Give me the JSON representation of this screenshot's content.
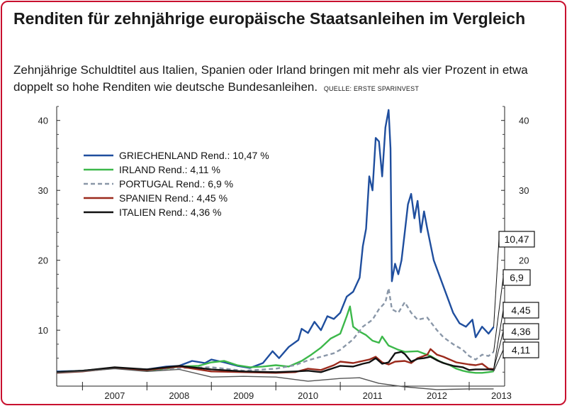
{
  "header": {
    "title": "Renditen für zehnjährige europäische Staatsanleihen im Vergleich",
    "subtitle": "Zehnjährige Schuldtitel aus Italien, Spanien oder Irland bringen mit mehr als vier Prozent in etwa doppelt so hohe Renditen wie deutsche Bundesanleihen.",
    "source": "QUELLE: ERSTE SPARINVEST"
  },
  "colors": {
    "frame": "#c8102e",
    "griechenland": "#1f4e9e",
    "irland": "#3cb84a",
    "portugal": "#8a97a8",
    "spanien": "#9b2a1c",
    "italien": "#111111",
    "bund": "#555555"
  },
  "chart_data": {
    "type": "line",
    "title": "",
    "xlabel": "",
    "ylabel": "",
    "xlim": [
      2006.6,
      2013.55
    ],
    "ylim": [
      2,
      42
    ],
    "x_ticks": [
      "2007",
      "2008",
      "2009",
      "2010",
      "2011",
      "2012",
      "2013"
    ],
    "y_ticks_left": [
      "10",
      "20",
      "30",
      "40"
    ],
    "y_ticks_right": [
      "20",
      "30",
      "40"
    ],
    "grid": false,
    "legend_position": "top-left",
    "series": [
      {
        "name": "GRIECHENLAND Rend.: 10,47 %",
        "color": "#1f4e9e",
        "style": "solid",
        "end_label": "10,47",
        "points": [
          [
            2006.6,
            4.1
          ],
          [
            2007.0,
            4.2
          ],
          [
            2007.5,
            4.6
          ],
          [
            2008.0,
            4.4
          ],
          [
            2008.3,
            4.8
          ],
          [
            2008.5,
            4.9
          ],
          [
            2008.7,
            5.6
          ],
          [
            2008.9,
            5.3
          ],
          [
            2009.0,
            5.8
          ],
          [
            2009.2,
            5.4
          ],
          [
            2009.4,
            4.9
          ],
          [
            2009.6,
            4.6
          ],
          [
            2009.8,
            5.3
          ],
          [
            2009.95,
            7.0
          ],
          [
            2010.05,
            6.0
          ],
          [
            2010.2,
            7.6
          ],
          [
            2010.35,
            8.6
          ],
          [
            2010.4,
            10.2
          ],
          [
            2010.5,
            9.6
          ],
          [
            2010.6,
            11.2
          ],
          [
            2010.7,
            10.0
          ],
          [
            2010.8,
            12.0
          ],
          [
            2010.9,
            11.6
          ],
          [
            2011.0,
            12.5
          ],
          [
            2011.1,
            14.8
          ],
          [
            2011.2,
            15.5
          ],
          [
            2011.3,
            17.5
          ],
          [
            2011.35,
            22.0
          ],
          [
            2011.4,
            24.5
          ],
          [
            2011.45,
            32.0
          ],
          [
            2011.5,
            30.0
          ],
          [
            2011.55,
            37.5
          ],
          [
            2011.6,
            37.0
          ],
          [
            2011.65,
            32.0
          ],
          [
            2011.7,
            39.0
          ],
          [
            2011.75,
            41.5
          ],
          [
            2011.78,
            36.0
          ],
          [
            2011.8,
            17.0
          ],
          [
            2011.85,
            19.5
          ],
          [
            2011.9,
            18.0
          ],
          [
            2011.95,
            20.0
          ],
          [
            2012.0,
            24.0
          ],
          [
            2012.05,
            28.0
          ],
          [
            2012.1,
            29.5
          ],
          [
            2012.15,
            26.0
          ],
          [
            2012.2,
            28.5
          ],
          [
            2012.25,
            24.0
          ],
          [
            2012.3,
            27.0
          ],
          [
            2012.35,
            24.5
          ],
          [
            2012.45,
            20.0
          ],
          [
            2012.55,
            17.5
          ],
          [
            2012.65,
            15.0
          ],
          [
            2012.75,
            12.5
          ],
          [
            2012.85,
            11.0
          ],
          [
            2012.95,
            10.5
          ],
          [
            2013.05,
            11.5
          ],
          [
            2013.1,
            9.0
          ],
          [
            2013.2,
            10.5
          ],
          [
            2013.3,
            9.5
          ],
          [
            2013.38,
            10.47
          ]
        ]
      },
      {
        "name": "IRLAND Rend.: 4,11 %",
        "color": "#3cb84a",
        "style": "solid",
        "end_label": "4,11",
        "points": [
          [
            2006.6,
            4.0
          ],
          [
            2007.0,
            4.2
          ],
          [
            2007.5,
            4.6
          ],
          [
            2008.0,
            4.2
          ],
          [
            2008.3,
            4.5
          ],
          [
            2008.5,
            4.8
          ],
          [
            2008.8,
            4.9
          ],
          [
            2009.0,
            5.4
          ],
          [
            2009.2,
            5.6
          ],
          [
            2009.4,
            5.0
          ],
          [
            2009.6,
            4.7
          ],
          [
            2009.8,
            4.8
          ],
          [
            2010.0,
            5.0
          ],
          [
            2010.2,
            4.8
          ],
          [
            2010.4,
            5.6
          ],
          [
            2010.55,
            6.5
          ],
          [
            2010.7,
            7.5
          ],
          [
            2010.85,
            8.8
          ],
          [
            2011.0,
            9.5
          ],
          [
            2011.1,
            12.0
          ],
          [
            2011.15,
            13.4
          ],
          [
            2011.2,
            10.5
          ],
          [
            2011.3,
            9.8
          ],
          [
            2011.4,
            9.3
          ],
          [
            2011.5,
            8.5
          ],
          [
            2011.6,
            8.2
          ],
          [
            2011.65,
            9.1
          ],
          [
            2011.75,
            7.8
          ],
          [
            2011.9,
            7.2
          ],
          [
            2012.0,
            6.9
          ],
          [
            2012.2,
            7.0
          ],
          [
            2012.4,
            6.3
          ],
          [
            2012.55,
            5.5
          ],
          [
            2012.7,
            5.0
          ],
          [
            2012.8,
            4.5
          ],
          [
            2012.9,
            4.2
          ],
          [
            2013.0,
            4.0
          ],
          [
            2013.1,
            3.9
          ],
          [
            2013.2,
            3.9
          ],
          [
            2013.3,
            4.0
          ],
          [
            2013.38,
            4.11
          ]
        ]
      },
      {
        "name": "PORTUGAL Rend.: 6,9 %",
        "color": "#8a97a8",
        "style": "dashed",
        "end_label": "6,9",
        "points": [
          [
            2006.6,
            4.0
          ],
          [
            2007.0,
            4.2
          ],
          [
            2007.5,
            4.6
          ],
          [
            2008.0,
            4.3
          ],
          [
            2008.5,
            4.6
          ],
          [
            2009.0,
            4.7
          ],
          [
            2009.5,
            4.2
          ],
          [
            2010.0,
            4.5
          ],
          [
            2010.3,
            5.0
          ],
          [
            2010.5,
            5.7
          ],
          [
            2010.7,
            6.2
          ],
          [
            2010.9,
            6.7
          ],
          [
            2011.0,
            7.2
          ],
          [
            2011.2,
            8.7
          ],
          [
            2011.35,
            10.5
          ],
          [
            2011.5,
            11.5
          ],
          [
            2011.6,
            13.0
          ],
          [
            2011.7,
            14.0
          ],
          [
            2011.75,
            16.0
          ],
          [
            2011.8,
            13.0
          ],
          [
            2011.9,
            12.5
          ],
          [
            2012.0,
            14.0
          ],
          [
            2012.1,
            12.5
          ],
          [
            2012.2,
            11.5
          ],
          [
            2012.35,
            11.8
          ],
          [
            2012.5,
            10.0
          ],
          [
            2012.6,
            9.0
          ],
          [
            2012.75,
            8.0
          ],
          [
            2012.9,
            7.2
          ],
          [
            2013.0,
            6.3
          ],
          [
            2013.1,
            5.8
          ],
          [
            2013.2,
            6.5
          ],
          [
            2013.3,
            6.3
          ],
          [
            2013.38,
            6.9
          ]
        ]
      },
      {
        "name": "SPANIEN Rend.: 4,45 %",
        "color": "#9b2a1c",
        "style": "solid",
        "end_label": "4,45",
        "points": [
          [
            2006.6,
            3.9
          ],
          [
            2007.0,
            4.1
          ],
          [
            2007.5,
            4.6
          ],
          [
            2008.0,
            4.3
          ],
          [
            2008.5,
            4.8
          ],
          [
            2009.0,
            4.1
          ],
          [
            2009.5,
            4.0
          ],
          [
            2010.0,
            3.9
          ],
          [
            2010.3,
            4.0
          ],
          [
            2010.5,
            4.5
          ],
          [
            2010.7,
            4.3
          ],
          [
            2010.9,
            5.0
          ],
          [
            2011.0,
            5.5
          ],
          [
            2011.2,
            5.3
          ],
          [
            2011.35,
            5.6
          ],
          [
            2011.45,
            5.8
          ],
          [
            2011.55,
            6.2
          ],
          [
            2011.65,
            5.4
          ],
          [
            2011.75,
            5.1
          ],
          [
            2011.85,
            5.5
          ],
          [
            2012.0,
            5.6
          ],
          [
            2012.1,
            5.3
          ],
          [
            2012.2,
            6.0
          ],
          [
            2012.35,
            6.5
          ],
          [
            2012.4,
            7.3
          ],
          [
            2012.5,
            6.5
          ],
          [
            2012.6,
            6.2
          ],
          [
            2012.7,
            5.8
          ],
          [
            2012.8,
            5.4
          ],
          [
            2013.0,
            5.1
          ],
          [
            2013.1,
            5.0
          ],
          [
            2013.2,
            5.2
          ],
          [
            2013.3,
            4.5
          ],
          [
            2013.38,
            4.45
          ]
        ]
      },
      {
        "name": "ITALIEN Rend.: 4,36 %",
        "color": "#111111",
        "style": "solid",
        "end_label": "4,36",
        "points": [
          [
            2006.6,
            4.0
          ],
          [
            2007.0,
            4.2
          ],
          [
            2007.5,
            4.7
          ],
          [
            2008.0,
            4.4
          ],
          [
            2008.5,
            4.9
          ],
          [
            2009.0,
            4.4
          ],
          [
            2009.5,
            4.1
          ],
          [
            2010.0,
            4.0
          ],
          [
            2010.3,
            4.1
          ],
          [
            2010.5,
            4.2
          ],
          [
            2010.7,
            4.0
          ],
          [
            2010.9,
            4.6
          ],
          [
            2011.0,
            4.9
          ],
          [
            2011.2,
            4.8
          ],
          [
            2011.35,
            5.2
          ],
          [
            2011.45,
            5.4
          ],
          [
            2011.55,
            6.0
          ],
          [
            2011.65,
            5.2
          ],
          [
            2011.75,
            5.4
          ],
          [
            2011.85,
            6.7
          ],
          [
            2011.95,
            6.9
          ],
          [
            2012.0,
            6.6
          ],
          [
            2012.1,
            5.5
          ],
          [
            2012.2,
            5.9
          ],
          [
            2012.3,
            6.0
          ],
          [
            2012.4,
            6.2
          ],
          [
            2012.5,
            5.7
          ],
          [
            2012.6,
            5.3
          ],
          [
            2012.75,
            4.9
          ],
          [
            2012.9,
            4.7
          ],
          [
            2013.0,
            4.3
          ],
          [
            2013.1,
            4.4
          ],
          [
            2013.2,
            4.4
          ],
          [
            2013.3,
            4.4
          ],
          [
            2013.38,
            4.36
          ]
        ]
      },
      {
        "color": "#555555",
        "style": "solid",
        "points": [
          [
            2006.6,
            3.9
          ],
          [
            2007.0,
            4.1
          ],
          [
            2007.5,
            4.5
          ],
          [
            2008.0,
            4.1
          ],
          [
            2008.5,
            4.4
          ],
          [
            2009.0,
            3.3
          ],
          [
            2009.5,
            3.4
          ],
          [
            2010.0,
            3.3
          ],
          [
            2010.5,
            2.7
          ],
          [
            2011.0,
            3.1
          ],
          [
            2011.3,
            3.2
          ],
          [
            2011.6,
            2.4
          ],
          [
            2012.0,
            1.9
          ],
          [
            2012.5,
            1.5
          ],
          [
            2013.0,
            1.6
          ],
          [
            2013.38,
            1.6
          ]
        ]
      }
    ]
  }
}
